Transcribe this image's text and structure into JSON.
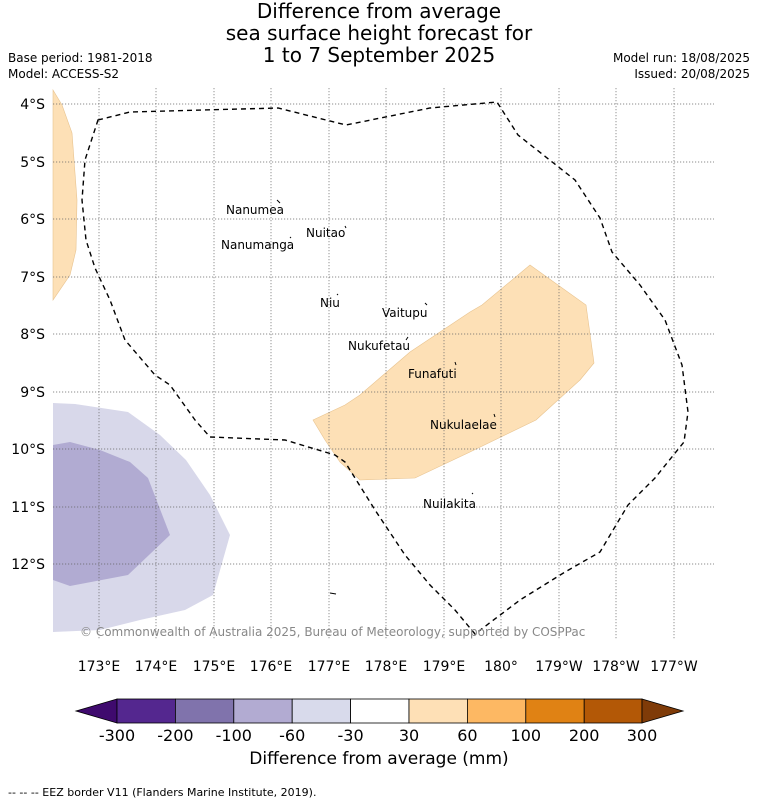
{
  "title": {
    "line1": "Difference from average",
    "line2": "sea surface height forecast for",
    "line3": "1 to 7 September 2025"
  },
  "meta": {
    "base_period": "Base period: 1981-2018",
    "model": "Model: ACCESS-S2",
    "model_run": "Model run: 18/08/2025",
    "issued": "Issued: 20/08/2025"
  },
  "map": {
    "lat_labels": [
      "4°S",
      "5°S",
      "6°S",
      "7°S",
      "8°S",
      "9°S",
      "10°S",
      "11°S",
      "12°S"
    ],
    "lon_labels": [
      "173°E",
      "174°E",
      "175°E",
      "176°E",
      "177°E",
      "178°E",
      "179°E",
      "180°",
      "179°W",
      "178°W",
      "177°W"
    ],
    "places": [
      "Nanumea",
      "Nuitao",
      "Nanumanga",
      "Niu",
      "Vaitupu",
      "Nukufetau",
      "Funafuti",
      "Nukulaelae",
      "Nuilakita"
    ],
    "copyright": "© Commonwealth of Australia 2025, Bureau of Meteorology, supported by COSPPac",
    "colors": {
      "pos_30_60": "#fde0b6",
      "neg_30_60": "#d8d8ea",
      "neg_60_100": "#b1abd2",
      "eez": "#000000"
    }
  },
  "legend": {
    "ticks": [
      "-300",
      "-200",
      "-100",
      "-60",
      "-30",
      "30",
      "60",
      "100",
      "200",
      "300"
    ],
    "colors": [
      "#3f0a6e",
      "#54278f",
      "#8073ac",
      "#b2abd2",
      "#d8daeb",
      "#ffffff",
      "#fee0b6",
      "#fdb863",
      "#e08214",
      "#b35806",
      "#7f3b08"
    ],
    "title": "Difference from average (mm)"
  },
  "footer": "--  --  -- EEZ border V11 (Flanders Marine Institute, 2019)."
}
